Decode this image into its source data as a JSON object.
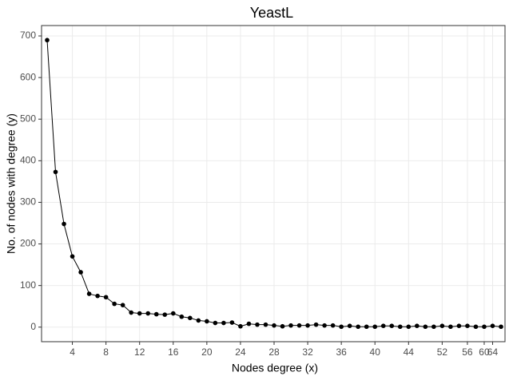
{
  "chart_data": {
    "type": "line",
    "title": "YeastL",
    "x_label": "Nodes degree (x)",
    "y_label": "No. of nodes with degree (y)",
    "categories": [
      null,
      null,
      null,
      "4",
      null,
      null,
      null,
      "8",
      null,
      null,
      null,
      "12",
      null,
      null,
      null,
      "16",
      null,
      null,
      null,
      "20",
      null,
      null,
      null,
      "24",
      null,
      null,
      null,
      "28",
      null,
      null,
      null,
      "32",
      null,
      null,
      null,
      "36",
      null,
      null,
      null,
      "40",
      null,
      null,
      null,
      "44",
      null,
      null,
      null,
      "52",
      null,
      null,
      "56",
      null,
      "60",
      "64",
      null
    ],
    "values": [
      690,
      373,
      248,
      170,
      132,
      80,
      75,
      72,
      56,
      53,
      35,
      33,
      33,
      31,
      30,
      33,
      25,
      22,
      16,
      14,
      10,
      10,
      11,
      2,
      8,
      6,
      6,
      4,
      2,
      4,
      4,
      4,
      6,
      4,
      4,
      1,
      3,
      1,
      1,
      1,
      3,
      3,
      1,
      1,
      3,
      1,
      1,
      3,
      1,
      3,
      3,
      1,
      1,
      3,
      1
    ],
    "color": "#000000",
    "ylim": [
      -35,
      725
    ],
    "yticks": [
      0,
      100,
      200,
      300,
      400,
      500,
      600,
      700
    ],
    "grid": true
  }
}
